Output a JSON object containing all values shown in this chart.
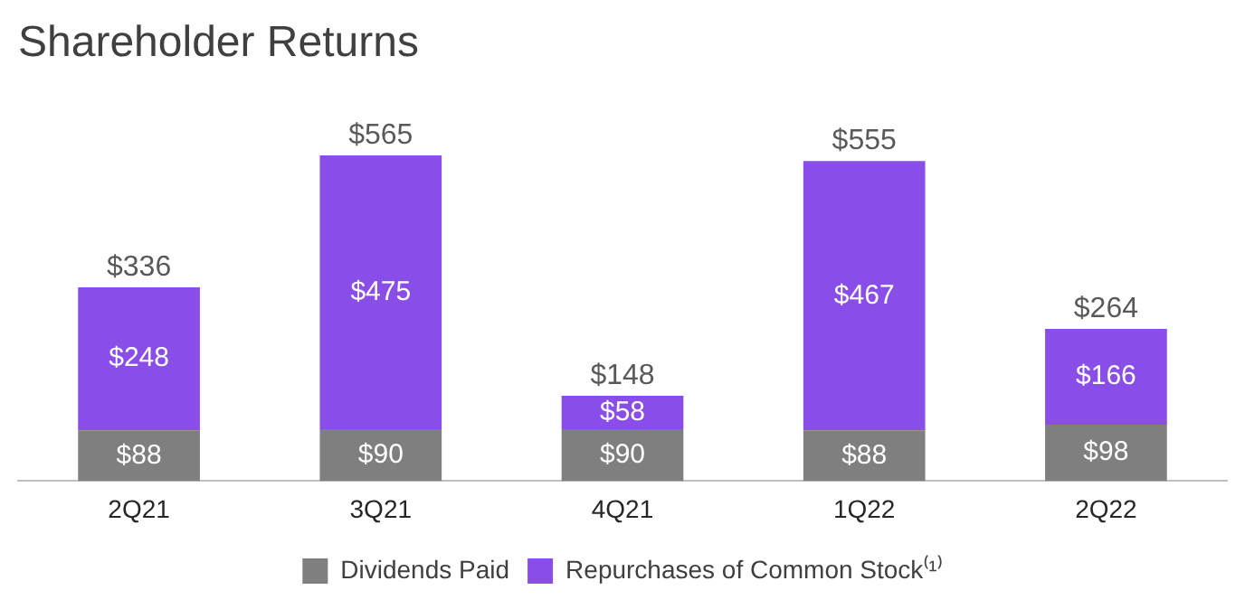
{
  "chart_data": {
    "type": "bar",
    "title": "Shareholder Returns",
    "categories": [
      "2Q21",
      "3Q21",
      "4Q21",
      "1Q22",
      "2Q22"
    ],
    "stacked": true,
    "tick_labels": "x",
    "grid": false,
    "legend": "bottom",
    "series": [
      {
        "name": "Dividends Paid",
        "color": "#7f7f7f",
        "values": [
          88,
          90,
          90,
          88,
          98
        ],
        "value_labels": [
          "$88",
          "$90",
          "$90",
          "$88",
          "$98"
        ]
      },
      {
        "name": "Repurchases of Common Stock⁽¹⁾",
        "color": "#8a4ee8",
        "values": [
          248,
          475,
          58,
          467,
          166
        ],
        "value_labels": [
          "$248",
          "$475",
          "$58",
          "$467",
          "$166"
        ]
      }
    ],
    "totals": [
      "$336",
      "$565",
      "$148",
      "$555",
      "$264"
    ]
  }
}
